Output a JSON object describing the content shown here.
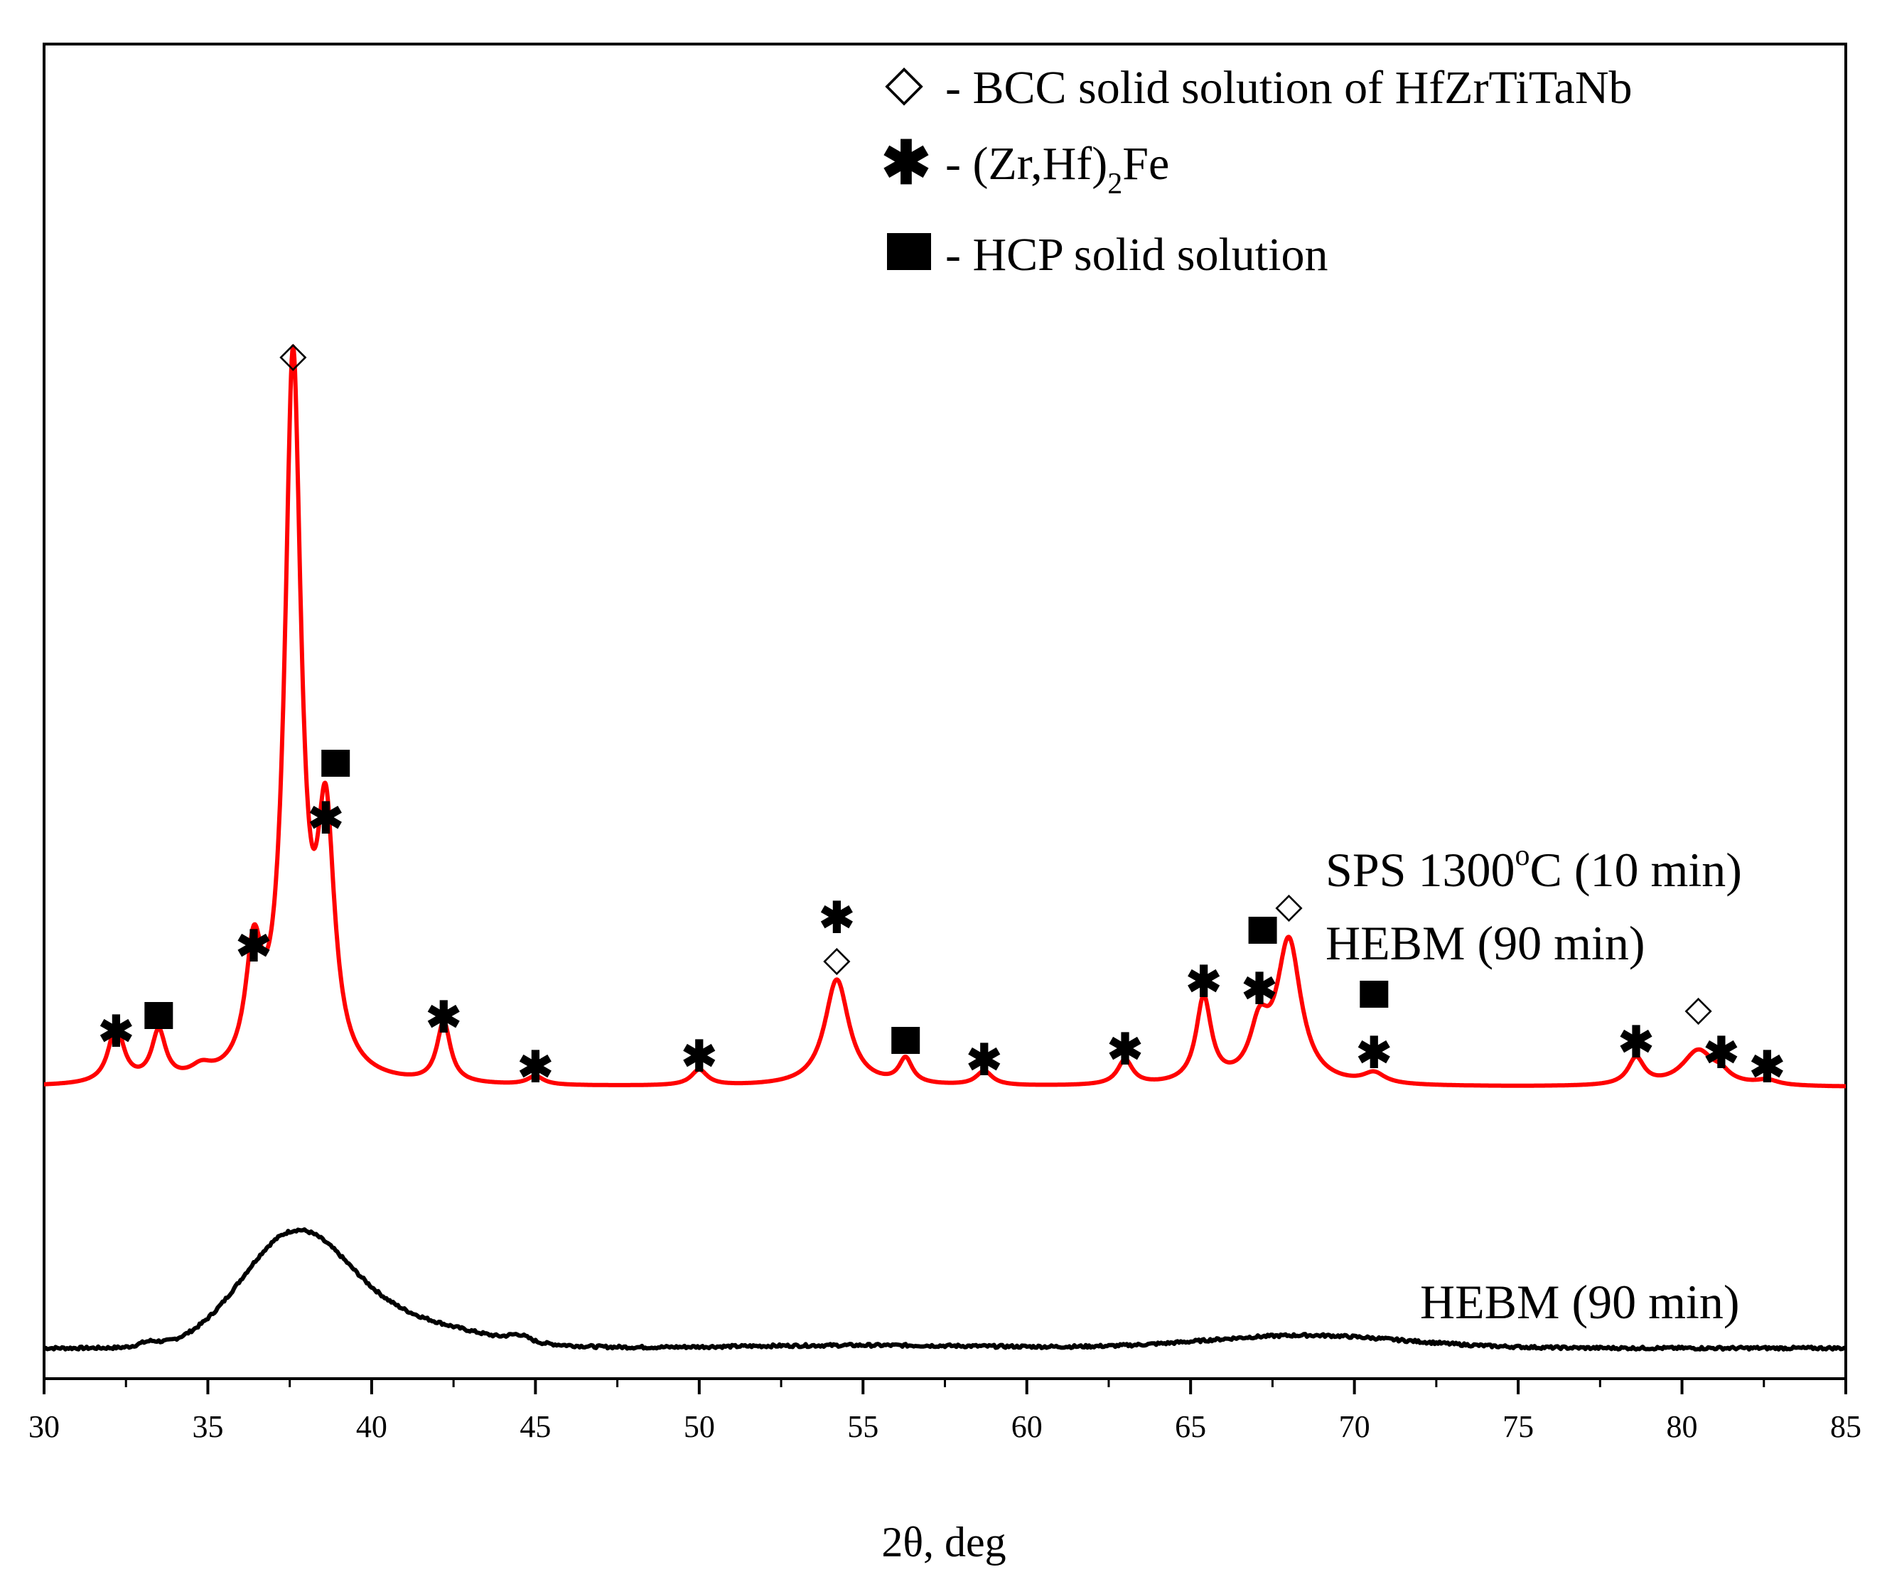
{
  "chart_data": {
    "type": "line",
    "title": "",
    "xlabel": "2θ, deg",
    "ylabel": "",
    "xlim": [
      30,
      85
    ],
    "x_ticks": [
      "30",
      "35",
      "40",
      "45",
      "50",
      "55",
      "60",
      "65",
      "70",
      "75",
      "80",
      "85"
    ],
    "grid": false,
    "legend": [
      {
        "symbol": "◇",
        "symbol_name": "diamond-icon",
        "text": "- BCC solid solution of HfZrTiTaNb"
      },
      {
        "symbol": "✱",
        "symbol_name": "asterisk-icon",
        "text_pre": "- (Zr,Hf)",
        "text_sub": "2",
        "text_post": "Fe"
      },
      {
        "symbol": "■",
        "symbol_name": "square-icon",
        "text": "- HCP solid solution"
      }
    ],
    "series": [
      {
        "name": "SPS 1300°C (10 min) HEBM (90 min)",
        "label_line1_pre": "SPS 1300",
        "label_line1_sup": "o",
        "label_line1_post": "C (10 min)",
        "label_line2": "HEBM (90 min)",
        "color": "#ff0000",
        "baseline": 0.0,
        "peaks": [
          {
            "x": 32.2,
            "h": 0.08,
            "w": 0.28
          },
          {
            "x": 33.5,
            "h": 0.07,
            "w": 0.26
          },
          {
            "x": 34.8,
            "h": 0.015,
            "w": 0.4
          },
          {
            "x": 36.4,
            "h": 0.16,
            "w": 0.3
          },
          {
            "x": 37.6,
            "h": 1.0,
            "w": 0.3
          },
          {
            "x": 38.6,
            "h": 0.34,
            "w": 0.32
          },
          {
            "x": 42.2,
            "h": 0.085,
            "w": 0.25
          },
          {
            "x": 45.0,
            "h": 0.012,
            "w": 0.3
          },
          {
            "x": 50.0,
            "h": 0.022,
            "w": 0.3
          },
          {
            "x": 54.2,
            "h": 0.15,
            "w": 0.45
          },
          {
            "x": 56.3,
            "h": 0.035,
            "w": 0.25
          },
          {
            "x": 58.7,
            "h": 0.02,
            "w": 0.3
          },
          {
            "x": 63.0,
            "h": 0.035,
            "w": 0.28
          },
          {
            "x": 65.4,
            "h": 0.12,
            "w": 0.28
          },
          {
            "x": 67.1,
            "h": 0.07,
            "w": 0.35
          },
          {
            "x": 68.0,
            "h": 0.2,
            "w": 0.45
          },
          {
            "x": 70.6,
            "h": 0.015,
            "w": 0.4
          },
          {
            "x": 78.6,
            "h": 0.038,
            "w": 0.3
          },
          {
            "x": 80.5,
            "h": 0.05,
            "w": 0.6
          },
          {
            "x": 81.2,
            "h": 0.01,
            "w": 0.3
          },
          {
            "x": 82.6,
            "h": 0.007,
            "w": 0.4
          }
        ]
      },
      {
        "name": "HEBM (90 min)",
        "label": "HEBM (90 min)",
        "color": "#000000",
        "baseline": -0.367,
        "broad_peaks": [
          {
            "x": 37.6,
            "h": 0.145,
            "w": 1.6
          },
          {
            "x": 40.5,
            "h": 0.04,
            "w": 2.5
          },
          {
            "x": 44.5,
            "h": 0.008,
            "w": 0.3
          },
          {
            "x": 33.2,
            "h": 0.006,
            "w": 0.3
          },
          {
            "x": 68.5,
            "h": 0.018,
            "w": 3.0
          },
          {
            "x": 55.0,
            "h": 0.004,
            "w": 4.0
          }
        ]
      }
    ],
    "peak_markers": [
      {
        "type": "asterisk",
        "x": 32.2,
        "level": 0.08
      },
      {
        "type": "square",
        "x": 33.5,
        "level": 0.1
      },
      {
        "type": "asterisk",
        "x": 36.4,
        "level": 0.2
      },
      {
        "type": "diamond",
        "x": 37.6,
        "level": 1.03
      },
      {
        "type": "asterisk",
        "x": 38.6,
        "level": 0.38
      },
      {
        "type": "square",
        "x": 38.9,
        "level": 0.455
      },
      {
        "type": "asterisk",
        "x": 42.2,
        "level": 0.1
      },
      {
        "type": "asterisk",
        "x": 45.0,
        "level": 0.03
      },
      {
        "type": "asterisk",
        "x": 50.0,
        "level": 0.045
      },
      {
        "type": "diamond",
        "x": 54.2,
        "level": 0.18
      },
      {
        "type": "asterisk",
        "x": 54.2,
        "level": 0.24
      },
      {
        "type": "square",
        "x": 56.3,
        "level": 0.065
      },
      {
        "type": "asterisk",
        "x": 58.7,
        "level": 0.04
      },
      {
        "type": "asterisk",
        "x": 63.0,
        "level": 0.055
      },
      {
        "type": "asterisk",
        "x": 65.4,
        "level": 0.15
      },
      {
        "type": "asterisk",
        "x": 67.1,
        "level": 0.14
      },
      {
        "type": "square",
        "x": 67.2,
        "level": 0.22
      },
      {
        "type": "diamond",
        "x": 68.0,
        "level": 0.255
      },
      {
        "type": "square",
        "x": 70.6,
        "level": 0.13
      },
      {
        "type": "asterisk",
        "x": 70.6,
        "level": 0.05
      },
      {
        "type": "asterisk",
        "x": 78.6,
        "level": 0.065
      },
      {
        "type": "diamond",
        "x": 80.5,
        "level": 0.11
      },
      {
        "type": "asterisk",
        "x": 81.2,
        "level": 0.05
      },
      {
        "type": "asterisk",
        "x": 82.6,
        "level": 0.03
      }
    ]
  }
}
